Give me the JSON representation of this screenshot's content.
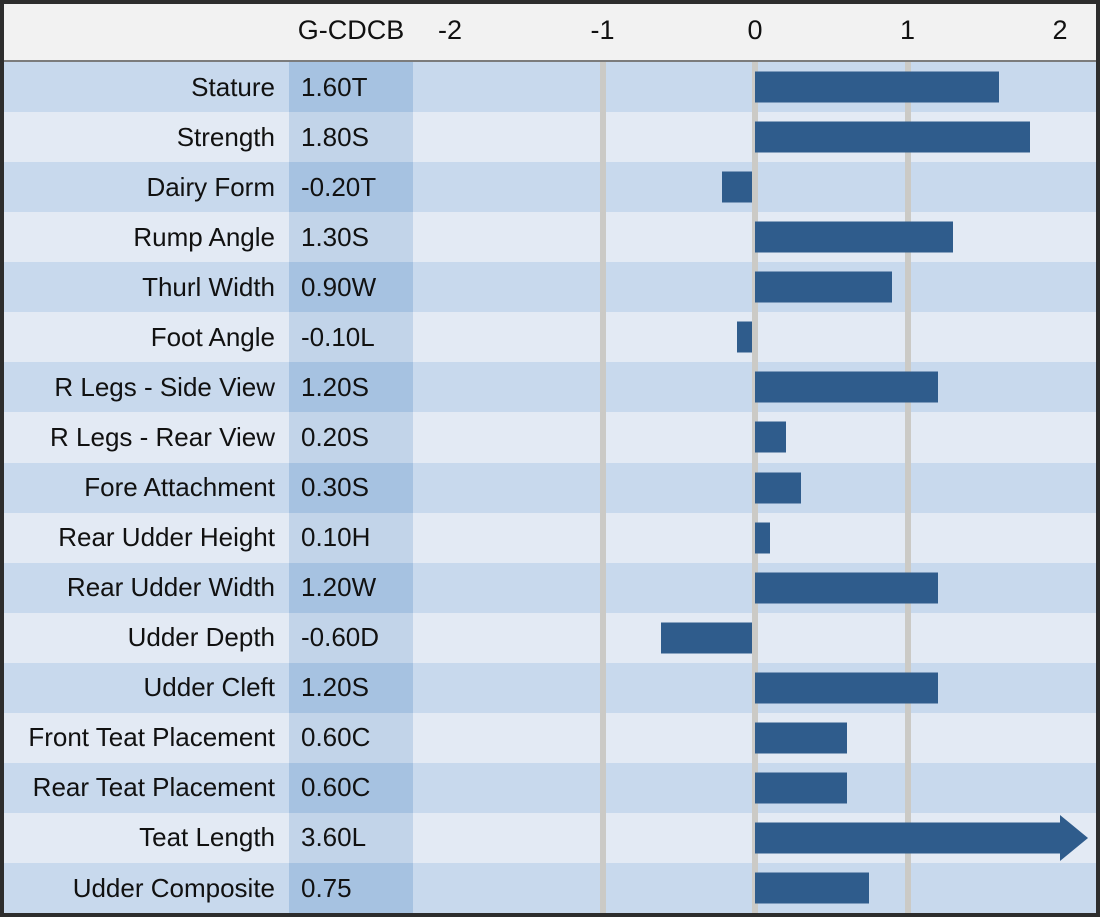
{
  "colors": {
    "bar": "#2F5C8C",
    "row_dark": "#C8D9ED",
    "row_light": "#E3EAF4",
    "value_cell_dark": "#A6C2E1",
    "value_cell_light": "#C2D4E9",
    "header_bg": "#F2F2F2",
    "header_rule": "#7C7C7C",
    "gridline": "#CBCAC6",
    "frame_border": "#2D2D2D",
    "text": "#111111"
  },
  "chart_data": {
    "type": "bar",
    "orientation": "horizontal",
    "title": "",
    "value_column_header": "G-CDCB",
    "axis_ticks": [
      -2,
      -1,
      0,
      1,
      2
    ],
    "gridlines_at": [
      -1,
      0,
      1
    ],
    "xlim": [
      -2.25,
      2.25
    ],
    "legend": "none",
    "bar_color": "#2F5C8C",
    "categories": [
      "Stature",
      "Strength",
      "Dairy Form",
      "Rump Angle",
      "Thurl Width",
      "Foot Angle",
      "R Legs - Side View",
      "R Legs - Rear View",
      "Fore Attachment",
      "Rear Udder Height",
      "Rear Udder Width",
      "Udder Depth",
      "Udder Cleft",
      "Front Teat Placement",
      "Rear Teat Placement",
      "Teat Length",
      "Udder Composite"
    ],
    "values": [
      1.6,
      1.8,
      -0.2,
      1.3,
      0.9,
      -0.1,
      1.2,
      0.2,
      0.3,
      0.1,
      1.2,
      -0.6,
      1.2,
      0.6,
      0.6,
      3.6,
      0.75
    ],
    "value_labels": [
      "1.60T",
      "1.80S",
      "-0.20T",
      "1.30S",
      "0.90W",
      "-0.10L",
      "1.20S",
      "0.20S",
      "0.30S",
      "0.10H",
      "1.20W",
      "-0.60D",
      "1.20S",
      "0.60C",
      "0.60C",
      "3.60L",
      "0.75"
    ],
    "overflow_arrow": {
      "category": "Teat Length",
      "value": 3.6,
      "clipped_at": 2.0
    }
  }
}
